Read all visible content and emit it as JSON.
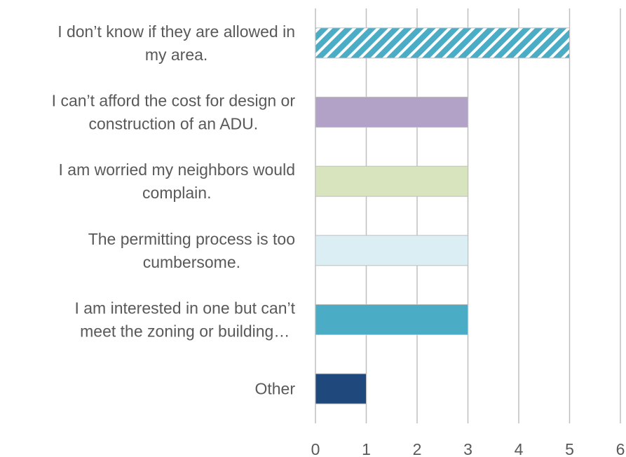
{
  "chart_data": {
    "type": "bar",
    "orientation": "horizontal",
    "title": "",
    "xlabel": "",
    "ylabel": "",
    "xlim": [
      0,
      6
    ],
    "x_ticks": [
      0,
      1,
      2,
      3,
      4,
      5,
      6
    ],
    "grid": "vertical",
    "legend": "none",
    "categories": [
      {
        "label_lines": [
          "I don’t know if they are allowed in",
          "my area."
        ],
        "value": 5,
        "color": "#4bacc6",
        "pattern": "diagonal-stripes"
      },
      {
        "label_lines": [
          "I can’t afford the cost for design or",
          "construction of an ADU."
        ],
        "value": 3,
        "color": "#b3a2c7",
        "pattern": "solid"
      },
      {
        "label_lines": [
          "I am worried my neighbors would",
          "complain."
        ],
        "value": 3,
        "color": "#d7e4bd",
        "pattern": "solid"
      },
      {
        "label_lines": [
          "The permitting process is too",
          "cumbersome."
        ],
        "value": 3,
        "color": "#dbeef4",
        "pattern": "solid"
      },
      {
        "label_lines": [
          "I am interested in one but can’t",
          "meet the zoning or building…"
        ],
        "value": 3,
        "color": "#4bacc6",
        "pattern": "solid"
      },
      {
        "label_lines": [
          "Other"
        ],
        "value": 1,
        "color": "#1f497d",
        "pattern": "solid"
      }
    ]
  }
}
